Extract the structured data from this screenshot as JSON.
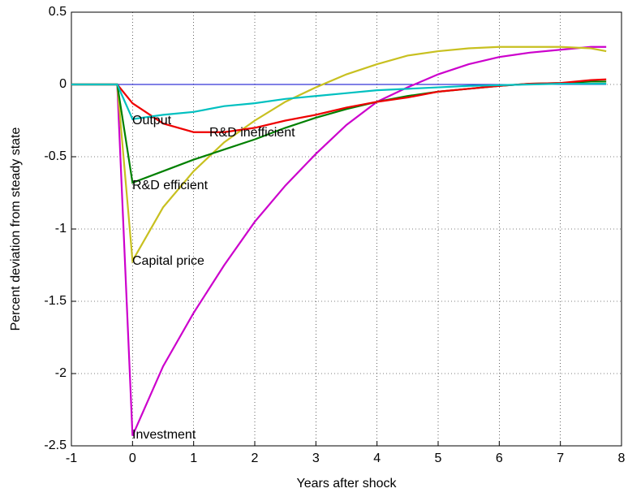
{
  "chart_data": {
    "type": "line",
    "x_label": "Years after shock",
    "y_label": "Percent deviation from steady state",
    "x": [
      -1,
      -0.25,
      0,
      0.5,
      1,
      1.5,
      2,
      2.5,
      3,
      3.5,
      4,
      4.5,
      5,
      5.5,
      6,
      6.5,
      7,
      7.5,
      7.75
    ],
    "series": [
      {
        "color": "#0000cc",
        "values": [
          0,
          0,
          0,
          0,
          0,
          0,
          0,
          0,
          0,
          0,
          0,
          0,
          0,
          0,
          0,
          0,
          0,
          0,
          0
        ]
      },
      {
        "name": "Investment",
        "color": "#cc00cc",
        "values": [
          0,
          0,
          -2.43,
          -1.95,
          -1.58,
          -1.25,
          -0.95,
          -0.7,
          -0.48,
          -0.28,
          -0.12,
          -0.02,
          0.07,
          0.14,
          0.19,
          0.22,
          0.24,
          0.26,
          0.26
        ]
      },
      {
        "name": "Capital price",
        "color": "#c8c020",
        "values": [
          0,
          0,
          -1.22,
          -0.85,
          -0.6,
          -0.4,
          -0.25,
          -0.12,
          -0.02,
          0.07,
          0.14,
          0.2,
          0.23,
          0.25,
          0.26,
          0.26,
          0.26,
          0.25,
          0.23
        ]
      },
      {
        "name": "R&D efficient",
        "color": "#008000",
        "values": [
          0,
          0,
          -0.68,
          -0.6,
          -0.52,
          -0.45,
          -0.38,
          -0.3,
          -0.23,
          -0.17,
          -0.12,
          -0.08,
          -0.05,
          -0.03,
          -0.01,
          0.005,
          0.01,
          0.02,
          0.02
        ]
      },
      {
        "name": "R&D inefficient",
        "color": "#ee0000",
        "values": [
          0,
          0,
          -0.13,
          -0.27,
          -0.33,
          -0.33,
          -0.3,
          -0.25,
          -0.21,
          -0.16,
          -0.12,
          -0.09,
          -0.05,
          -0.03,
          -0.01,
          0.005,
          0.01,
          0.03,
          0.035
        ]
      },
      {
        "name": "Output",
        "color": "#00c0c0",
        "values": [
          0,
          0,
          -0.24,
          -0.21,
          -0.19,
          -0.15,
          -0.13,
          -0.1,
          -0.08,
          -0.06,
          -0.04,
          -0.03,
          -0.02,
          -0.01,
          -0.005,
          0,
          0.005,
          0.005,
          0.005
        ]
      }
    ],
    "xlim": [
      -1,
      8
    ],
    "xticks": [
      -1,
      0,
      1,
      2,
      3,
      4,
      5,
      6,
      7,
      8
    ],
    "ylim": [
      -2.5,
      0.5
    ],
    "yticks": [
      -2.5,
      -2,
      -1.5,
      -1,
      -0.5,
      0,
      0.5
    ],
    "grid": true
  }
}
